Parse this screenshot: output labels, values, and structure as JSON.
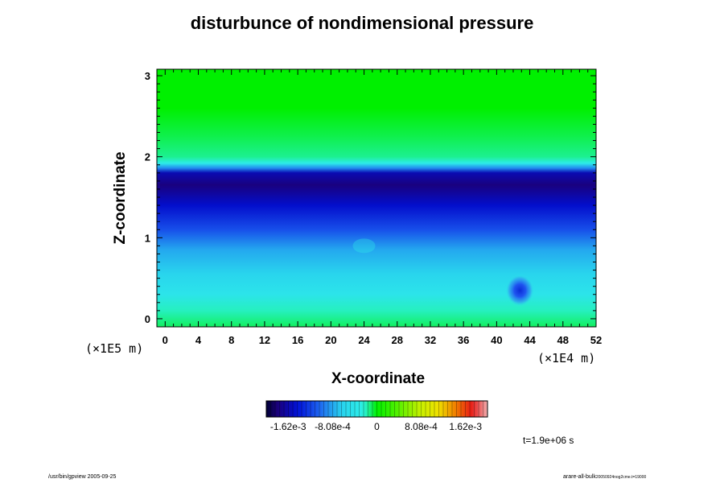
{
  "chart_data": {
    "type": "heatmap",
    "title": "disturbunce of nondimensional pressure",
    "xlabel": "X-coordinate",
    "ylabel": "Z-coordinate",
    "x_unit_label": "(×1E4 m)",
    "y_unit_label": "(×1E5 m)",
    "xlim": [
      -1,
      52
    ],
    "ylim": [
      -0.1,
      3.08
    ],
    "x_ticks": [
      0,
      4,
      8,
      12,
      16,
      20,
      24,
      28,
      32,
      36,
      40,
      44,
      48,
      52
    ],
    "y_ticks": [
      0,
      1,
      2,
      3
    ],
    "color_range": [
      -0.00202,
      0.00202
    ],
    "colorbar_ticks": [
      {
        "label": "-1.62e-3",
        "value": -0.00162
      },
      {
        "label": "-8.08e-4",
        "value": -0.000808
      },
      {
        "label": "0",
        "value": 0
      },
      {
        "label": "8.08e-4",
        "value": 0.000808
      },
      {
        "label": "1.62e-3",
        "value": 0.00162
      }
    ],
    "z_levels": [
      {
        "z": 3.08,
        "value": 0.0
      },
      {
        "z": 2.6,
        "value": 0.0
      },
      {
        "z": 2.25,
        "value": -8e-05
      },
      {
        "z": 2.0,
        "value": -0.00015
      },
      {
        "z": 1.92,
        "value": -0.0003
      },
      {
        "z": 1.86,
        "value": -0.0009
      },
      {
        "z": 1.8,
        "value": -0.0016
      },
      {
        "z": 1.65,
        "value": -0.0018
      },
      {
        "z": 1.4,
        "value": -0.0015
      },
      {
        "z": 1.1,
        "value": -0.00115
      },
      {
        "z": 0.85,
        "value": -0.0008
      },
      {
        "z": 0.55,
        "value": -0.0006
      },
      {
        "z": 0.3,
        "value": -0.0004
      },
      {
        "z": 0.1,
        "value": -0.0002
      },
      {
        "z": -0.1,
        "value": -0.0001
      }
    ],
    "anomalies": [
      {
        "x": 42.8,
        "z": 0.35,
        "value": -0.0016
      },
      {
        "x": 24,
        "z": 0.9,
        "value": -0.0003
      }
    ],
    "time_label": "t=1.9e+06 s"
  },
  "footer": {
    "left": "/usr/bin/gpview 2005-09-25",
    "right_main": "arare-all-bulk",
    "right_sub": "20050924nog2cme.t=19000"
  }
}
